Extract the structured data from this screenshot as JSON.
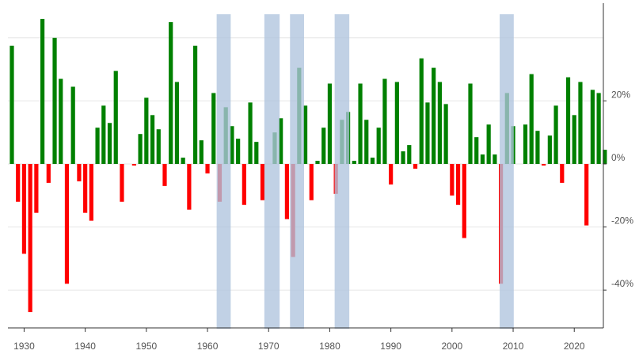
{
  "chart_data": {
    "type": "bar",
    "title": "",
    "xlabel": "",
    "ylabel": "",
    "xlim": [
      1927.5,
      2025.5
    ],
    "ylim": [
      -52,
      48
    ],
    "x_ticks": [
      "1930",
      "1940",
      "1950",
      "1960",
      "1970",
      "1980",
      "1990",
      "2000",
      "2010",
      "2020"
    ],
    "y_ticks": [
      {
        "value": 20,
        "label": "20%"
      },
      {
        "value": 0,
        "label": "0%"
      },
      {
        "value": -20,
        "label": "-20%"
      },
      {
        "value": -40,
        "label": "-40%"
      }
    ],
    "gridlines": [
      40,
      20,
      0,
      -20,
      -40
    ],
    "grid": true,
    "colors": {
      "positive": "#008000",
      "negative": "#ff0000",
      "recession": "#b0c4de",
      "grid": "#e6e6e6",
      "axis": "#333333"
    },
    "recession_periods": [
      [
        1961.5,
        1963.8
      ],
      [
        1969.3,
        1971.8
      ],
      [
        1973.5,
        1975.8
      ],
      [
        1980.8,
        1983.2
      ],
      [
        2007.8,
        2010.1
      ]
    ],
    "x": [
      1928,
      1929,
      1930,
      1931,
      1932,
      1933,
      1934,
      1935,
      1936,
      1937,
      1938,
      1939,
      1940,
      1941,
      1942,
      1943,
      1944,
      1945,
      1946,
      1947,
      1948,
      1949,
      1950,
      1951,
      1952,
      1953,
      1954,
      1955,
      1956,
      1957,
      1958,
      1959,
      1960,
      1961,
      1962,
      1963,
      1964,
      1965,
      1966,
      1967,
      1968,
      1969,
      1970,
      1971,
      1972,
      1973,
      1974,
      1975,
      1976,
      1977,
      1978,
      1979,
      1980,
      1981,
      1982,
      1983,
      1984,
      1985,
      1986,
      1987,
      1988,
      1989,
      1990,
      1991,
      1992,
      1993,
      1994,
      1995,
      1996,
      1997,
      1998,
      1999,
      2000,
      2001,
      2002,
      2003,
      2004,
      2005,
      2006,
      2007,
      2008,
      2009,
      2010,
      2011,
      2012,
      2013,
      2014,
      2015,
      2016,
      2017,
      2018,
      2019,
      2020,
      2021,
      2022,
      2023,
      2024,
      2025
    ],
    "values": [
      37.5,
      -12,
      -28.5,
      -47,
      -15.5,
      46,
      -6,
      40,
      27,
      -38,
      24.5,
      -5.5,
      -15.5,
      -18,
      11.5,
      18.5,
      13,
      29.5,
      -12,
      0,
      -0.5,
      9.5,
      21,
      15.5,
      11,
      -7,
      45,
      26,
      2,
      -14.5,
      37.5,
      7.5,
      -3,
      22.5,
      -12,
      18,
      12,
      8,
      -13,
      19.5,
      7,
      -11.5,
      0,
      10,
      14.5,
      -17.5,
      -29.5,
      30.5,
      18.5,
      -11.5,
      1,
      11.5,
      25.5,
      -9.5,
      14,
      16.5,
      1,
      25.5,
      14,
      2,
      11.5,
      27,
      -6.5,
      26,
      4,
      6,
      -1.5,
      33.5,
      19.5,
      30.5,
      26,
      19,
      -10,
      -13,
      -23.5,
      25.5,
      8.5,
      3,
      12.5,
      3,
      -38,
      22.5,
      12,
      0,
      12.5,
      28.5,
      10.5,
      -0.5,
      9,
      18.5,
      -6,
      27.5,
      15.5,
      26,
      -19.5,
      23.5,
      22.5,
      4.5
    ]
  }
}
